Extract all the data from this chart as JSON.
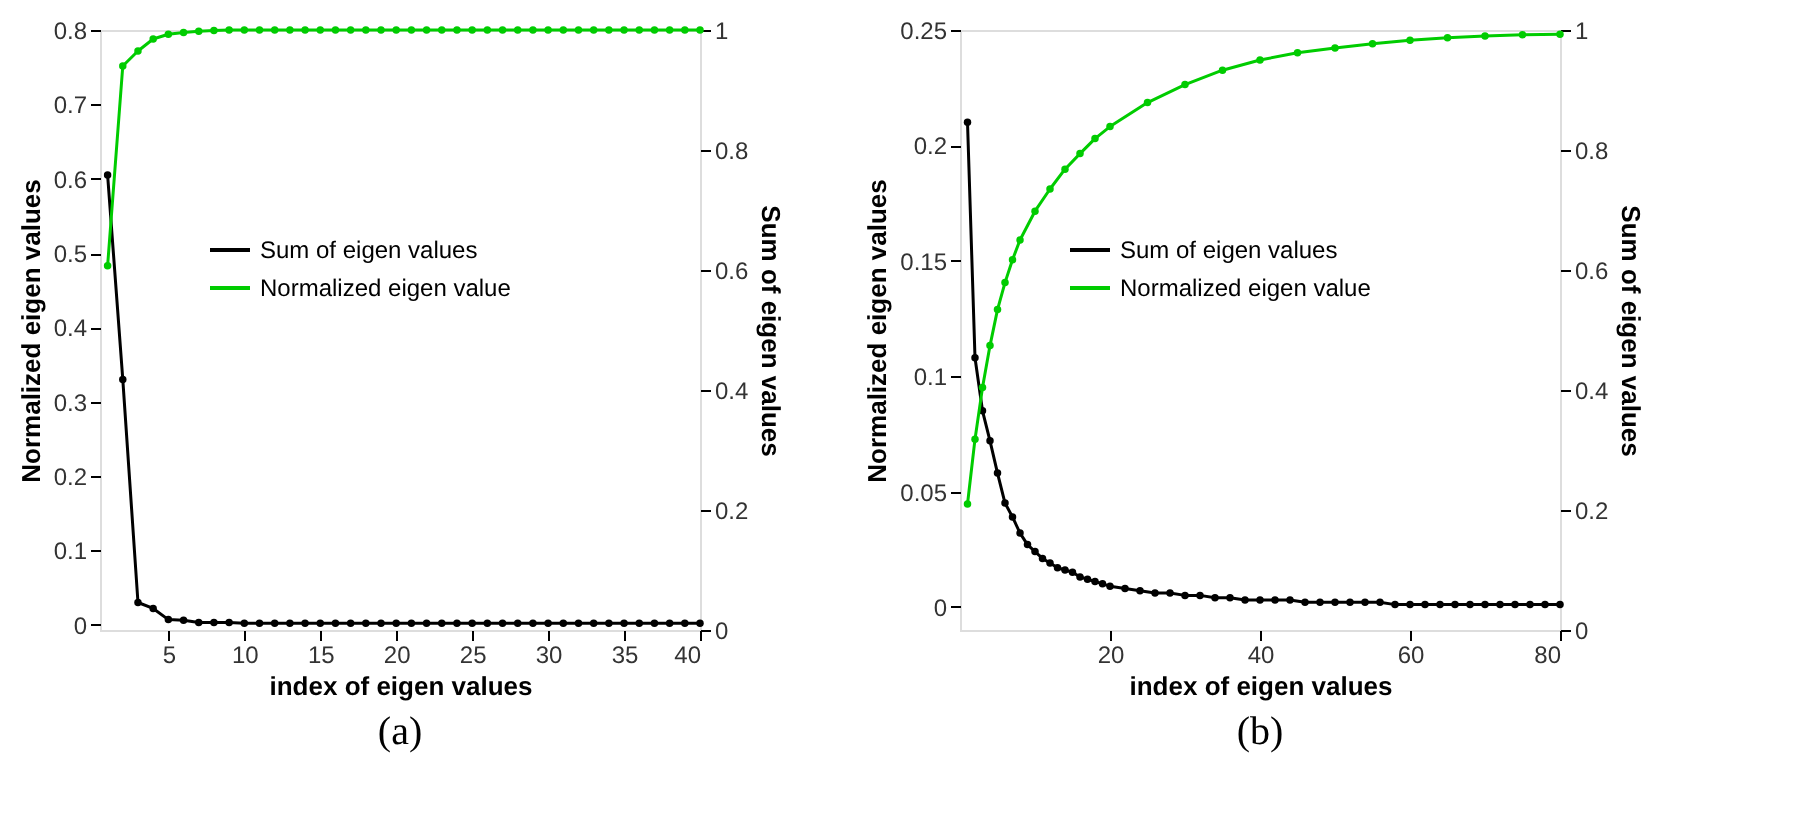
{
  "chart_data": [
    {
      "type": "line",
      "xlabel": "index of eigen values",
      "ylabel": "Normalized eigen values",
      "y2label": "Sum of eigen values",
      "annotations": [
        "(a)"
      ],
      "xlim": [
        0.5,
        40
      ],
      "xticks": [
        5,
        10,
        15,
        20,
        25,
        30,
        35,
        40
      ],
      "ylim": [
        -0.007,
        0.8
      ],
      "yticks": [
        0,
        0.1,
        0.2,
        0.3,
        0.4,
        0.5,
        0.6,
        0.7,
        0.8
      ],
      "y2lim": [
        0,
        1
      ],
      "y2ticks": [
        0,
        0.2,
        0.4,
        0.6,
        0.8,
        1
      ],
      "grid": false,
      "legend": "center",
      "marker": "circle",
      "line_style": "solid",
      "series": [
        {
          "name": "Sum of eigen values",
          "color": "#000000",
          "axis": "y",
          "x": [
            1,
            2,
            3,
            4,
            5,
            6,
            7,
            8,
            9,
            10,
            11,
            12,
            13,
            14,
            15,
            16,
            17,
            18,
            19,
            20,
            21,
            22,
            23,
            24,
            25,
            26,
            27,
            28,
            29,
            30,
            31,
            32,
            33,
            34,
            35,
            36,
            37,
            38,
            39,
            40
          ],
          "values": [
            0.605,
            0.33,
            0.03,
            0.022,
            0.007,
            0.006,
            0.003,
            0.003,
            0.003,
            0.002,
            0.002,
            0.002,
            0.002,
            0.002,
            0.002,
            0.002,
            0.002,
            0.002,
            0.002,
            0.002,
            0.002,
            0.002,
            0.002,
            0.002,
            0.002,
            0.002,
            0.002,
            0.002,
            0.002,
            0.002,
            0.002,
            0.002,
            0.002,
            0.002,
            0.002,
            0.002,
            0.002,
            0.002,
            0.002,
            0.002
          ]
        },
        {
          "name": "Normalized eigen value",
          "color": "#00cc00",
          "axis": "y2",
          "x": [
            1,
            2,
            3,
            4,
            5,
            6,
            7,
            8,
            9,
            10,
            11,
            12,
            13,
            14,
            15,
            16,
            17,
            18,
            19,
            20,
            21,
            22,
            23,
            24,
            25,
            26,
            27,
            28,
            29,
            30,
            31,
            32,
            33,
            34,
            35,
            36,
            37,
            38,
            39,
            40
          ],
          "values": [
            0.607,
            0.94,
            0.965,
            0.985,
            0.993,
            0.996,
            0.998,
            0.999,
            1,
            1,
            1,
            1,
            1,
            1,
            1,
            1,
            1,
            1,
            1,
            1,
            1,
            1,
            1,
            1,
            1,
            1,
            1,
            1,
            1,
            1,
            1,
            1,
            1,
            1,
            1,
            1,
            1,
            1,
            1,
            1
          ]
        }
      ]
    },
    {
      "type": "line",
      "xlabel": "index of eigen values",
      "ylabel": "Normalized eigen values",
      "y2label": "Sum of eigen values",
      "annotations": [
        "(b)"
      ],
      "xlim": [
        0,
        80
      ],
      "xticks": [
        20,
        40,
        60,
        80
      ],
      "ylim": [
        -0.01,
        0.25
      ],
      "yticks": [
        0,
        0.05,
        0.1,
        0.15,
        0.2,
        0.25
      ],
      "y2lim": [
        0,
        1
      ],
      "y2ticks": [
        0,
        0.2,
        0.4,
        0.6,
        0.8,
        1
      ],
      "grid": false,
      "legend": "center",
      "marker": "circle",
      "line_style": "solid",
      "series": [
        {
          "name": "Sum of eigen values",
          "color": "#000000",
          "axis": "y",
          "x": [
            1,
            2,
            3,
            4,
            5,
            6,
            7,
            8,
            9,
            10,
            11,
            12,
            13,
            14,
            15,
            16,
            17,
            18,
            19,
            20,
            22,
            24,
            26,
            28,
            30,
            32,
            34,
            36,
            38,
            40,
            42,
            44,
            46,
            48,
            50,
            52,
            54,
            56,
            58,
            60,
            62,
            64,
            66,
            68,
            70,
            72,
            74,
            76,
            78,
            80
          ],
          "values": [
            0.21,
            0.108,
            0.085,
            0.072,
            0.058,
            0.045,
            0.039,
            0.032,
            0.027,
            0.024,
            0.021,
            0.019,
            0.017,
            0.016,
            0.015,
            0.013,
            0.012,
            0.011,
            0.01,
            0.009,
            0.008,
            0.007,
            0.006,
            0.006,
            0.005,
            0.005,
            0.004,
            0.004,
            0.003,
            0.003,
            0.003,
            0.003,
            0.002,
            0.002,
            0.002,
            0.002,
            0.002,
            0.002,
            0.001,
            0.001,
            0.001,
            0.001,
            0.001,
            0.001,
            0.001,
            0.001,
            0.001,
            0.001,
            0.001,
            0.001
          ]
        },
        {
          "name": "Normalized eigen value",
          "color": "#00cc00",
          "axis": "y2",
          "x": [
            1,
            2,
            3,
            4,
            5,
            6,
            7,
            8,
            10,
            12,
            14,
            16,
            18,
            20,
            25,
            30,
            35,
            40,
            45,
            50,
            55,
            60,
            65,
            70,
            75,
            80
          ],
          "values": [
            0.21,
            0.318,
            0.404,
            0.474,
            0.534,
            0.579,
            0.617,
            0.65,
            0.698,
            0.735,
            0.768,
            0.794,
            0.819,
            0.839,
            0.879,
            0.909,
            0.933,
            0.95,
            0.962,
            0.97,
            0.977,
            0.983,
            0.987,
            0.99,
            0.992,
            0.993
          ]
        }
      ]
    }
  ]
}
